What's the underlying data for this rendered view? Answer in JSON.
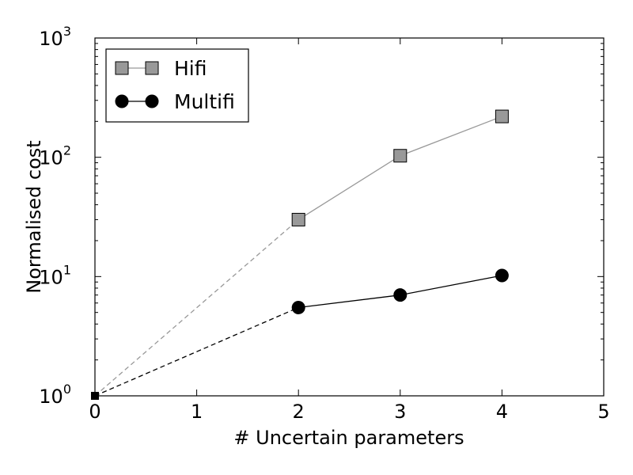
{
  "chart_data": {
    "type": "line",
    "title": "",
    "xlabel": "# Uncertain parameters",
    "ylabel": "Normalised cost",
    "xlim": [
      0,
      5
    ],
    "ylim": [
      1,
      1000
    ],
    "yscale": "log",
    "x_ticks": [
      "0",
      "1",
      "2",
      "3",
      "4",
      "5"
    ],
    "y_ticks": [
      {
        "base": "10",
        "exp": "0",
        "value": 1
      },
      {
        "base": "10",
        "exp": "1",
        "value": 10
      },
      {
        "base": "10",
        "exp": "2",
        "value": 100
      },
      {
        "base": "10",
        "exp": "3",
        "value": 1000
      }
    ],
    "grid": false,
    "legend_position": "top-left",
    "series": [
      {
        "name": "Hifi",
        "color": "#999999",
        "marker": "square",
        "x": [
          2,
          3,
          4
        ],
        "y": [
          30,
          103,
          220
        ],
        "dashed_from": [
          0,
          1
        ]
      },
      {
        "name": "Multifi",
        "color": "#000000",
        "marker": "circle",
        "x": [
          2,
          3,
          4
        ],
        "y": [
          5.5,
          7.0,
          10.2
        ],
        "dashed_from": [
          0,
          1
        ]
      }
    ]
  }
}
